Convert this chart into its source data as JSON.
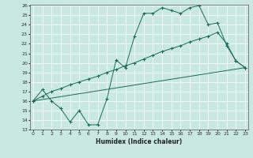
{
  "xlabel": "Humidex (Indice chaleur)",
  "bg_color": "#c8e8e0",
  "line_color": "#1a6b5a",
  "grid_color": "#aad4cc",
  "xmin": 0,
  "xmax": 23,
  "ymin": 13,
  "ymax": 26,
  "line1_x": [
    0,
    1,
    2,
    3,
    4,
    5,
    6,
    7,
    8,
    9,
    10,
    11,
    12,
    13,
    14,
    15,
    16,
    17,
    18,
    19,
    20,
    21,
    22,
    23
  ],
  "line1_y": [
    16,
    17.2,
    16,
    15.2,
    13.8,
    15,
    13.5,
    13.5,
    16.2,
    20.3,
    19.5,
    22.8,
    25.2,
    25.2,
    25.8,
    25.5,
    25.2,
    25.8,
    26.0,
    24.0,
    24.2,
    21.8,
    20.2,
    19.5
  ],
  "line2_x": [
    0,
    1,
    2,
    3,
    4,
    5,
    6,
    7,
    8,
    9,
    10,
    11,
    12,
    13,
    14,
    15,
    16,
    17,
    18,
    19,
    20,
    21,
    22,
    23
  ],
  "line2_y": [
    16,
    16.5,
    17.0,
    17.3,
    17.7,
    18.0,
    18.3,
    18.6,
    19.0,
    19.3,
    19.7,
    20.0,
    20.4,
    20.8,
    21.2,
    21.5,
    21.8,
    22.2,
    22.5,
    22.8,
    23.2,
    22.0,
    20.2,
    19.5
  ],
  "line3_x": [
    0,
    23
  ],
  "line3_y": [
    16,
    19.5
  ]
}
